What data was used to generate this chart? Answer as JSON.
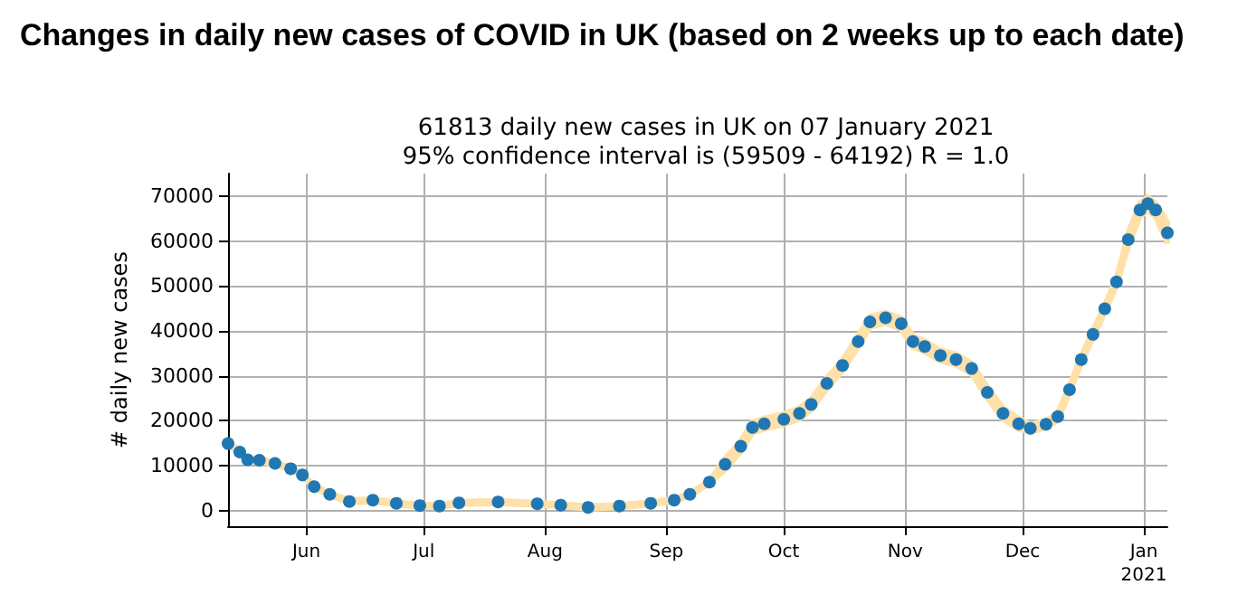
{
  "chart_data": {
    "type": "scatter",
    "title": "Changes in daily new cases of COVID in UK (based on 2 weeks up to each date)",
    "subtitle": "61813 daily new cases in UK on 07 January 2021\n95% confidence interval is (59509 - 64192) R = 1.0",
    "ylabel": "# daily new cases",
    "x": [
      "2020-05-12",
      "2020-05-15",
      "2020-05-17",
      "2020-05-20",
      "2020-05-24",
      "2020-05-28",
      "2020-05-31",
      "2020-06-03",
      "2020-06-07",
      "2020-06-12",
      "2020-06-18",
      "2020-06-24",
      "2020-06-30",
      "2020-07-05",
      "2020-07-10",
      "2020-07-20",
      "2020-07-30",
      "2020-08-05",
      "2020-08-12",
      "2020-08-20",
      "2020-08-28",
      "2020-09-03",
      "2020-09-07",
      "2020-09-12",
      "2020-09-16",
      "2020-09-20",
      "2020-09-23",
      "2020-09-26",
      "2020-10-01",
      "2020-10-05",
      "2020-10-08",
      "2020-10-12",
      "2020-10-16",
      "2020-10-20",
      "2020-10-23",
      "2020-10-27",
      "2020-10-31",
      "2020-11-03",
      "2020-11-06",
      "2020-11-10",
      "2020-11-14",
      "2020-11-18",
      "2020-11-22",
      "2020-11-26",
      "2020-11-30",
      "2020-12-03",
      "2020-12-07",
      "2020-12-10",
      "2020-12-13",
      "2020-12-16",
      "2020-12-19",
      "2020-12-22",
      "2020-12-25",
      "2020-12-28",
      "2020-12-31",
      "2021-01-02",
      "2021-01-04",
      "2021-01-07"
    ],
    "series": [
      {
        "color": "#1f77b4",
        "values": [
          14900,
          13000,
          11300,
          11200,
          10500,
          9300,
          7900,
          5300,
          3600,
          2000,
          2300,
          1600,
          1100,
          1000,
          1700,
          1900,
          1500,
          1200,
          700,
          1000,
          1600,
          2300,
          3600,
          6300,
          10300,
          14300,
          18500,
          19300,
          20300,
          21600,
          23600,
          28300,
          32300,
          37600,
          42000,
          42900,
          41600,
          37600,
          36500,
          34500,
          33600,
          31600,
          26300,
          21600,
          19300,
          18300,
          19200,
          20900,
          26900,
          33600,
          39200,
          44900,
          50900,
          60300,
          66900,
          68300,
          66900,
          61813
        ],
        "lower": [
          14600,
          12700,
          11000,
          10900,
          10200,
          9000,
          7600,
          5000,
          3300,
          1700,
          2000,
          1300,
          800,
          700,
          1400,
          1600,
          1200,
          900,
          400,
          700,
          1300,
          2000,
          3300,
          6000,
          9100,
          13100,
          17300,
          18100,
          19100,
          20400,
          22400,
          27100,
          31100,
          36400,
          40800,
          41700,
          40400,
          36400,
          35300,
          33300,
          32400,
          30400,
          25100,
          20400,
          18100,
          17500,
          18400,
          20100,
          26100,
          32800,
          38400,
          44100,
          50100,
          58800,
          65400,
          66800,
          65400,
          59509
        ],
        "upper": [
          15200,
          13300,
          11600,
          11500,
          10800,
          9600,
          8200,
          5600,
          3900,
          2300,
          2600,
          1900,
          1400,
          1300,
          2000,
          2200,
          1800,
          1500,
          1000,
          1300,
          1900,
          2600,
          3900,
          6600,
          11500,
          15500,
          19700,
          20500,
          21500,
          22800,
          24800,
          29500,
          33500,
          38800,
          43200,
          44100,
          42800,
          38800,
          37700,
          35700,
          34800,
          32800,
          27500,
          22800,
          20500,
          19100,
          20000,
          21700,
          27700,
          34400,
          40000,
          45700,
          51700,
          61800,
          68400,
          69800,
          68400,
          64192
        ]
      }
    ],
    "xlim": [
      "2020-05-12",
      "2021-01-07"
    ],
    "xticks": [
      {
        "value": "2020-06-01",
        "label": "Jun"
      },
      {
        "value": "2020-07-01",
        "label": "Jul"
      },
      {
        "value": "2020-08-01",
        "label": "Aug"
      },
      {
        "value": "2020-09-01",
        "label": "Sep"
      },
      {
        "value": "2020-10-01",
        "label": "Oct"
      },
      {
        "value": "2020-11-01",
        "label": "Nov"
      },
      {
        "value": "2020-12-01",
        "label": "Dec"
      },
      {
        "value": "2021-01-01",
        "label": "Jan\n2021"
      }
    ],
    "ylim": [
      -3500,
      75000
    ],
    "yticks": [
      0,
      10000,
      20000,
      30000,
      40000,
      50000,
      60000,
      70000
    ],
    "grid": true,
    "marker": "circle"
  }
}
